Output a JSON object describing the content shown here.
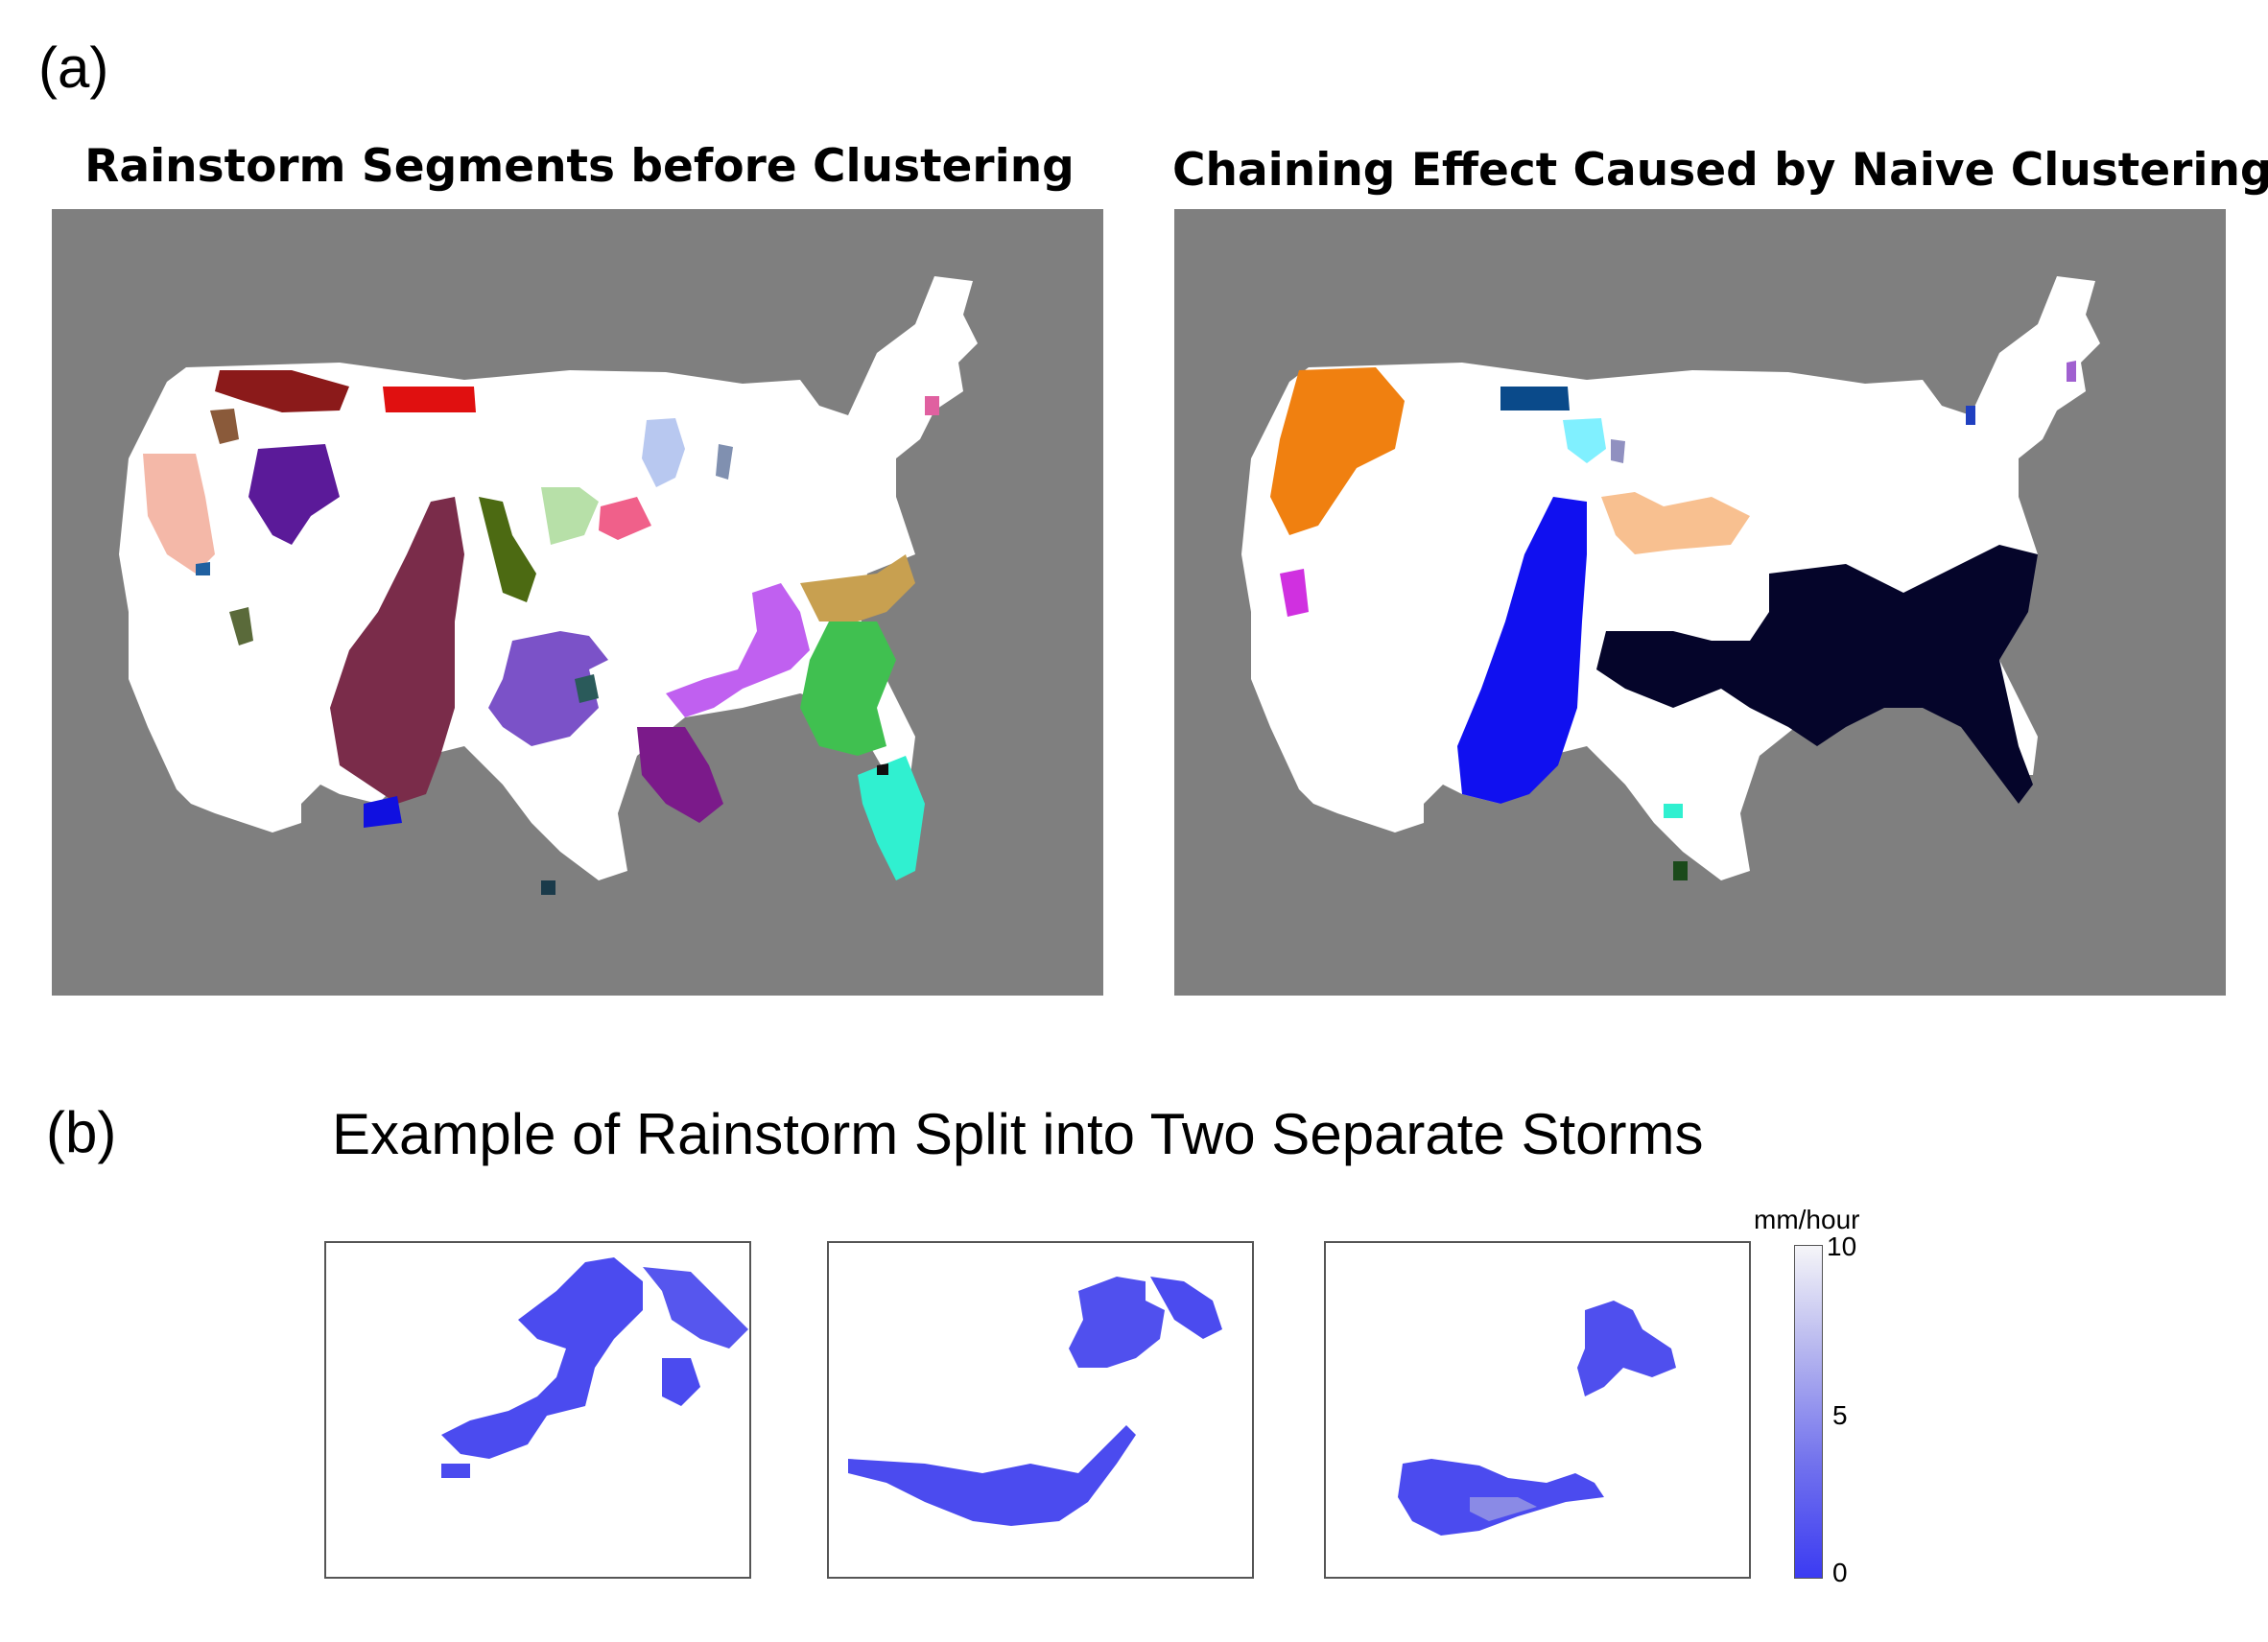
{
  "panel_a": {
    "label": "(a)",
    "left_map_title": "Rainstorm Segments before Clustering",
    "right_map_title": "Chaining Effect Caused by Naive Clustering"
  },
  "panel_b": {
    "label": "(b)",
    "title": "Example of Rainstorm Split into Two Separate Storms",
    "colorbar": {
      "unit": "mm/hour",
      "ticks": [
        "10",
        "5",
        "0"
      ],
      "range": [
        0,
        10
      ],
      "color_low": "#3b3bf2",
      "color_high": "#f5f5f8"
    }
  },
  "colors": {
    "background_gray": "#7f7f7f",
    "land": "#ffffff",
    "rain_blue": "#4b4bef",
    "left_segments": [
      "#8b1a1a",
      "#e01010",
      "#5b1a99",
      "#f4b8a8",
      "#7a2c4a",
      "#4c6a12",
      "#b7e0a8",
      "#f0608a",
      "#b8c8f0",
      "#7b52c8",
      "#c060f0",
      "#c8a050",
      "#40c050",
      "#7b1a8a",
      "#30f0d0",
      "#1010e0"
    ],
    "right_segments": [
      "#f08010",
      "#0a4a8a",
      "#80f0ff",
      "#f8c090",
      "#1010f0",
      "#05052a",
      "#d030e0"
    ]
  }
}
